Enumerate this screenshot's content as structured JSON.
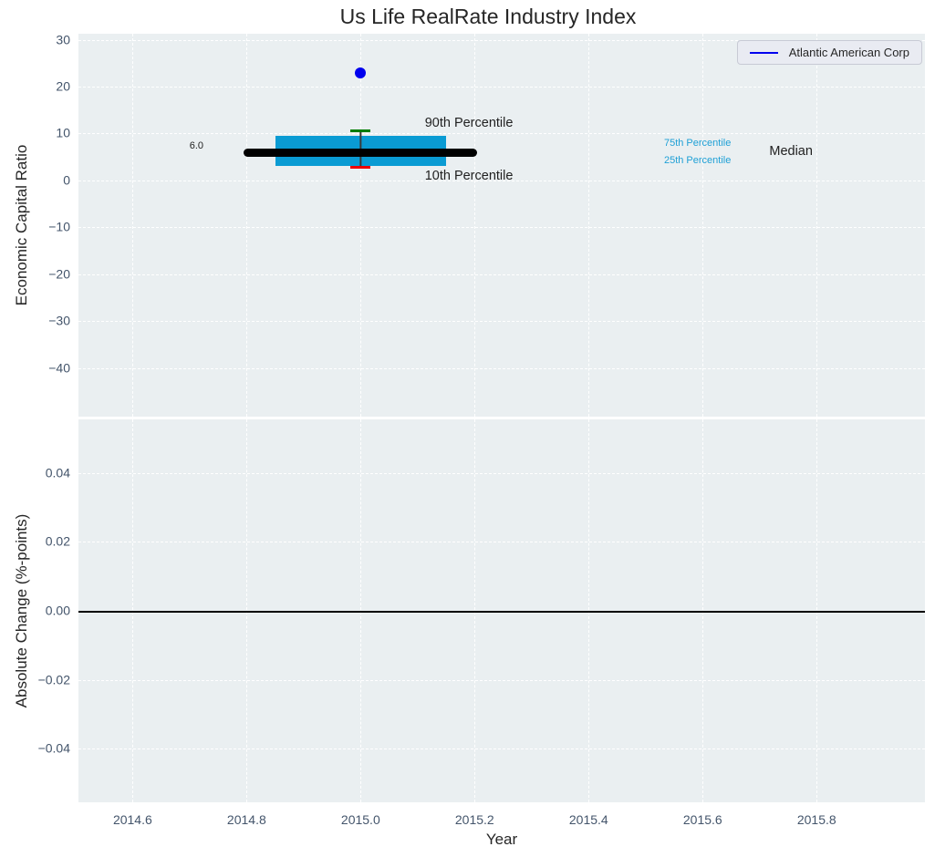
{
  "title": "Us Life RealRate Industry Index",
  "legend": {
    "label": "Atlantic American Corp"
  },
  "x_axis": {
    "label": "Year",
    "min": 2014.505,
    "max": 2015.99,
    "ticks": [
      2014.6,
      2014.8,
      2015.0,
      2015.2,
      2015.4,
      2015.6,
      2015.8
    ],
    "tick_labels": [
      "2014.6",
      "2014.8",
      "2015.0",
      "2015.2",
      "2015.4",
      "2015.6",
      "2015.8"
    ]
  },
  "top_plot": {
    "ylabel": "Economic Capital Ratio",
    "ymin": -50.4,
    "ymax": 31.3,
    "yticks": [
      30,
      20,
      10,
      0,
      -10,
      -20,
      -30,
      -40
    ],
    "ytick_labels": [
      "30",
      "20",
      "10",
      "0",
      "−10",
      "−20",
      "−30",
      "−40"
    ]
  },
  "bottom_plot": {
    "ylabel": "Absolute Change (%-points)",
    "ymin": -0.0555,
    "ymax": 0.0555,
    "yticks": [
      0.04,
      0.02,
      0.0,
      -0.02,
      -0.04
    ],
    "ytick_labels": [
      "0.04",
      "0.02",
      "0.00",
      "−0.02",
      "−0.04"
    ]
  },
  "chart_data": {
    "type": "boxplot+scatter",
    "title": "Us Life RealRate Industry Index",
    "xlabel": "Year",
    "ylabel_top": "Economic Capital Ratio",
    "ylabel_bottom": "Absolute Change (%-points)",
    "industry_box": {
      "x": 2015.0,
      "median": 6.0,
      "p25": 3.1,
      "p75": 9.5,
      "p10": 2.8,
      "p90": 10.5,
      "box_halfwidth_years": 0.15,
      "median_halfwidth_years": 0.205
    },
    "company_series": {
      "name": "Atlantic American Corp",
      "points": [
        {
          "x": 2015.0,
          "y": 22.9
        }
      ]
    },
    "bottom_series": {
      "zero_line": 0.0,
      "points": []
    },
    "annotations": [
      {
        "name": "median-value-label",
        "text": "6.0",
        "x": 2014.712,
        "y": 7.3,
        "size": 11,
        "color": "text"
      },
      {
        "name": "p90-label",
        "text": "90th Percentile",
        "x": 2015.19,
        "y": 12.3,
        "size": 14.5,
        "color": "text"
      },
      {
        "name": "p10-label",
        "text": "10th Percentile",
        "x": 2015.19,
        "y": 1.0,
        "size": 14.5,
        "color": "text"
      },
      {
        "name": "p75-label",
        "text": "75th Percentile",
        "x": 2015.591,
        "y": 8.0,
        "size": 11,
        "color": "cyan"
      },
      {
        "name": "p25-label",
        "text": "25th Percentile",
        "x": 2015.591,
        "y": 4.35,
        "size": 11,
        "color": "cyan"
      },
      {
        "name": "median-label",
        "text": "Median",
        "x": 2015.755,
        "y": 6.2,
        "size": 14.5,
        "color": "text"
      }
    ]
  },
  "colors": {
    "plot_bg": "#eaeff1",
    "grid": "#ffffff",
    "tick_label": "#44556b",
    "text": "#1f1f1f",
    "box_fill": "#0a9bd3",
    "median_line": "#000000",
    "p90_cap": "#007d00",
    "p10_cap": "#ee0000",
    "company": "#0000ee",
    "cyan": "#1fa0d6",
    "zero_line": "#000000",
    "legend_bg": "#e9ebf2",
    "legend_border": "#c8cad5"
  }
}
